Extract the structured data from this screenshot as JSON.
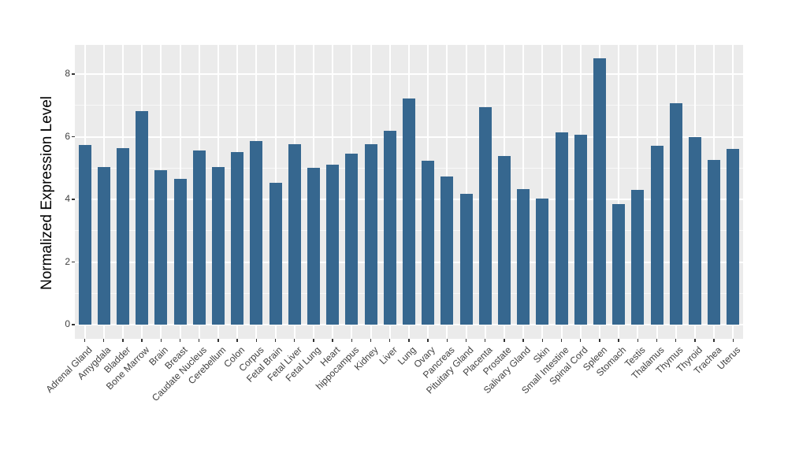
{
  "chart_data": {
    "type": "bar",
    "title": "",
    "xlabel": "",
    "ylabel": "Normalized Expression Level",
    "categories": [
      "Adrenal Gland",
      "Amygdala",
      "Bladder",
      "Bone Marrow",
      "Brain",
      "Breast",
      "Caudate Nucleus",
      "Cerebellum",
      "Colon",
      "Corpus",
      "Fetal Brain",
      "Fetal Liver",
      "Fetal Lung",
      "Heart",
      "hippocampus",
      "Kidney",
      "Liver",
      "Lung",
      "Ovary",
      "Pancreas",
      "Pituitary Gland",
      "Placenta",
      "Prostate",
      "Salivary Gland",
      "Skin",
      "Small Intestine",
      "Spinal Cord",
      "Spleen",
      "Stomach",
      "Testis",
      "Thalamus",
      "Thymus",
      "Thyroid",
      "Trachea",
      "Uterus"
    ],
    "values": [
      5.74,
      5.03,
      5.64,
      6.82,
      4.94,
      4.66,
      5.55,
      5.03,
      5.5,
      5.85,
      4.52,
      5.76,
      5.0,
      5.1,
      5.47,
      5.76,
      6.2,
      7.23,
      5.23,
      4.74,
      4.17,
      6.95,
      5.39,
      4.32,
      4.02,
      6.13,
      6.06,
      8.49,
      3.85,
      4.31,
      5.72,
      7.08,
      6.0,
      5.26,
      5.6
    ],
    "y_major_ticks": [
      0,
      2,
      4,
      6,
      8
    ],
    "y_minor_gridlines": [
      1,
      3,
      5,
      7
    ],
    "ylim": [
      -0.45,
      8.93
    ],
    "grid": "on",
    "legend_position": "none",
    "colors": {
      "bar_fill": "#36678F",
      "panel_background": "#EBEBEB",
      "gridline": "#FFFFFF",
      "axis_text": "#404040",
      "axis_title": "#000000",
      "figure_background": "#FFFFFF"
    }
  }
}
